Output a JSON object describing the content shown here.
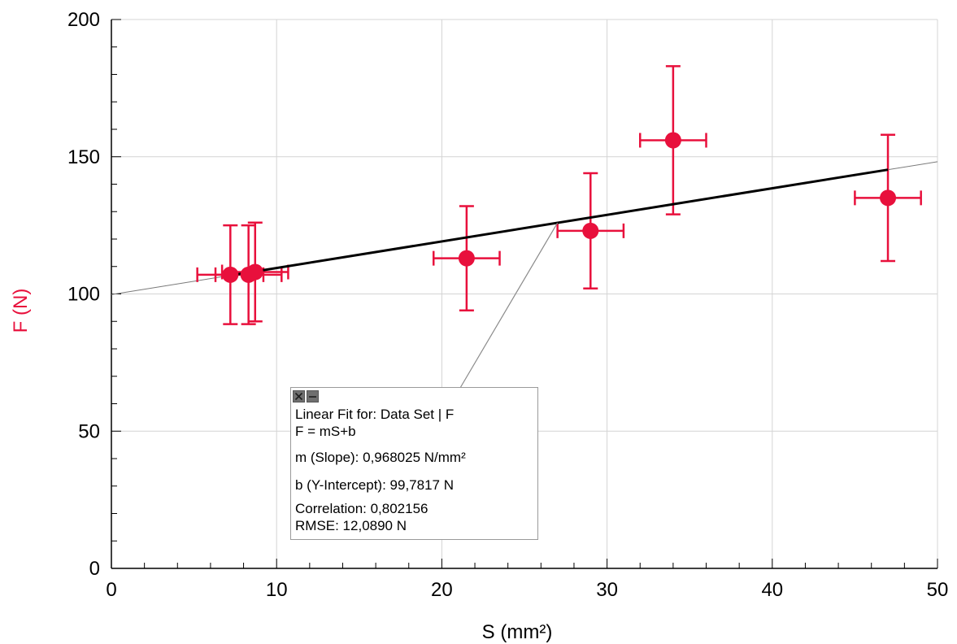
{
  "chart_data": {
    "type": "scatter",
    "xlabel": "S (mm²)",
    "ylabel": "F (N)",
    "xlim": [
      0,
      50
    ],
    "ylim": [
      0,
      200
    ],
    "x_ticks": [
      "0",
      "10",
      "20",
      "30",
      "40",
      "50"
    ],
    "y_ticks": [
      "0",
      "50",
      "100",
      "150",
      "200"
    ],
    "grid": true,
    "series": [
      {
        "color": "#e8103c",
        "x": [
          7.2,
          8.3,
          8.7,
          21.5,
          29.0,
          34.0,
          47.0
        ],
        "y": [
          107,
          107,
          108,
          113,
          123,
          156,
          135
        ],
        "x_err": [
          2,
          2,
          2,
          2,
          2,
          2,
          2
        ],
        "y_err": [
          18,
          18,
          18,
          19,
          21,
          27,
          23
        ]
      }
    ],
    "fit": {
      "slope": 0.968025,
      "intercept": 99.7817,
      "x_range": [
        7.2,
        47.0
      ],
      "color": "#000000"
    }
  },
  "fit_box": {
    "title": "Linear Fit for: Data Set | F",
    "equation": "F = mS+b",
    "slope": "m (Slope): 0,968025 N/mm²",
    "intercept": "b (Y-Intercept): 99,7817 N",
    "correlation": "Correlation: 0,802156",
    "rmse": "RMSE: 12,0890 N",
    "close_icon": "close-icon",
    "minimize_icon": "minimize-icon"
  },
  "colors": {
    "data": "#e8103c",
    "fit_line": "#000000",
    "grid": "#d4d4d4",
    "axis": "#000000"
  }
}
